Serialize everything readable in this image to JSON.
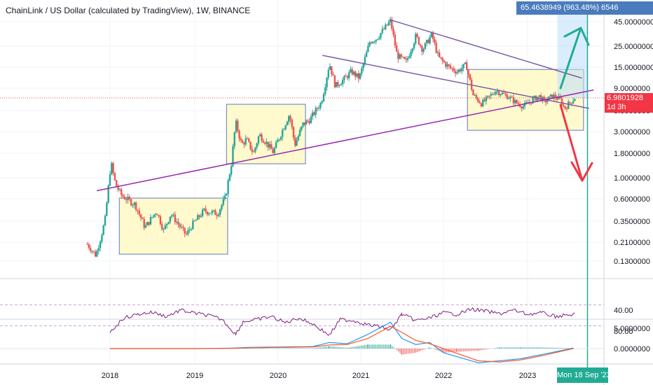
{
  "header": {
    "title": "ChainLink / US Dollar (calculated by TradingView), 1W, BINANCE"
  },
  "price_axis": {
    "currency": "USD",
    "current_price": "6.9801928",
    "countdown": "1d 3h"
  },
  "range_label": "65.4638949 (963.48%) 6546",
  "date_label": "Mon 18 Sep '23",
  "colors": {
    "up": "#26a69a",
    "down": "#ef5350",
    "trendline": "#7b5ea7",
    "support": "#9c27b0",
    "box_fill": "#fff9c4",
    "box_stroke": "#5c7cc4",
    "rsi": "#7e1f7e",
    "macd": "#2196f3",
    "signal": "#ff5722",
    "green_arrow": "#22ab94",
    "red_arrow": "#f23645",
    "price_tag": "#f23645",
    "range_tag": "#4a7bbd"
  },
  "chart_data": [
    {
      "type": "candlestick",
      "scale": "log",
      "ylim": [
        0.1,
        55
      ],
      "yticks": [
        "45.0000000",
        "25.0000000",
        "15.0000000",
        "9.0000000",
        "5.0000000",
        "3.0000000",
        "1.8000000",
        "1.0000000",
        "0.6000000",
        "0.3500000",
        "0.2100000",
        "0.1300000"
      ],
      "xticks": [
        "2018",
        "2019",
        "2020",
        "2021",
        "2022",
        "2023"
      ],
      "price_path": [
        [
          "2017-09-25",
          0.2
        ],
        [
          "2017-11-01",
          0.15
        ],
        [
          "2017-12-10",
          0.35
        ],
        [
          "2018-01-05",
          1.45
        ],
        [
          "2018-01-25",
          0.85
        ],
        [
          "2018-02-20",
          0.65
        ],
        [
          "2018-04-20",
          0.52
        ],
        [
          "2018-06-01",
          0.3
        ],
        [
          "2018-07-20",
          0.45
        ],
        [
          "2018-08-20",
          0.28
        ],
        [
          "2018-09-20",
          0.42
        ],
        [
          "2018-11-25",
          0.25
        ],
        [
          "2018-12-20",
          0.32
        ],
        [
          "2019-02-10",
          0.45
        ],
        [
          "2019-04-10",
          0.42
        ],
        [
          "2019-05-15",
          0.62
        ],
        [
          "2019-06-10",
          1.4
        ],
        [
          "2019-06-29",
          3.8
        ],
        [
          "2019-07-25",
          2.2
        ],
        [
          "2019-08-15",
          2.5
        ],
        [
          "2019-09-15",
          1.8
        ],
        [
          "2019-10-10",
          2.8
        ],
        [
          "2019-11-05",
          2.4
        ],
        [
          "2019-12-10",
          1.85
        ],
        [
          "2020-02-20",
          4.6
        ],
        [
          "2020-03-15",
          2.2
        ],
        [
          "2020-04-20",
          3.6
        ],
        [
          "2020-05-20",
          4.0
        ],
        [
          "2020-07-10",
          6.2
        ],
        [
          "2020-08-15",
          16.5
        ],
        [
          "2020-09-10",
          9.5
        ],
        [
          "2020-10-15",
          11.0
        ],
        [
          "2020-11-20",
          13.5
        ],
        [
          "2020-12-25",
          11.5
        ],
        [
          "2021-02-10",
          28.0
        ],
        [
          "2021-03-10",
          30.0
        ],
        [
          "2021-04-15",
          38.0
        ],
        [
          "2021-05-12",
          46.0
        ],
        [
          "2021-06-10",
          20.0
        ],
        [
          "2021-07-20",
          17.0
        ],
        [
          "2021-09-01",
          32.0
        ],
        [
          "2021-10-01",
          23.0
        ],
        [
          "2021-11-10",
          33.0
        ],
        [
          "2021-12-10",
          19.0
        ],
        [
          "2022-01-25",
          15.0
        ],
        [
          "2022-03-01",
          13.5
        ],
        [
          "2022-04-10",
          16.0
        ],
        [
          "2022-05-10",
          7.5
        ],
        [
          "2022-06-15",
          6.0
        ],
        [
          "2022-07-20",
          7.2
        ],
        [
          "2022-08-15",
          8.5
        ],
        [
          "2022-10-10",
          7.2
        ],
        [
          "2022-11-10",
          6.2
        ],
        [
          "2022-12-15",
          5.6
        ],
        [
          "2023-01-20",
          6.6
        ],
        [
          "2023-02-20",
          7.3
        ],
        [
          "2023-03-15",
          6.3
        ],
        [
          "2023-04-20",
          7.4
        ],
        [
          "2023-05-25",
          6.6
        ],
        [
          "2023-06-10",
          5.3
        ],
        [
          "2023-07-05",
          6.2
        ],
        [
          "2023-07-25",
          6.98
        ]
      ],
      "current_price": 6.9801928
    },
    {
      "type": "line",
      "name": "RSI",
      "yticks": [
        "80.00",
        "40.00"
      ],
      "band": [
        30,
        70
      ],
      "x": [
        "2018-01-01",
        "2018-03-01",
        "2018-05-01",
        "2018-07-01",
        "2018-09-01",
        "2018-11-01",
        "2019-01-01",
        "2019-03-01",
        "2019-05-01",
        "2019-06-29",
        "2019-08-01",
        "2019-10-01",
        "2019-12-01",
        "2020-02-01",
        "2020-04-01",
        "2020-06-01",
        "2020-08-15",
        "2020-10-01",
        "2020-12-01",
        "2021-02-01",
        "2021-04-01",
        "2021-05-12",
        "2021-07-01",
        "2021-09-01",
        "2021-11-01",
        "2022-01-01",
        "2022-03-01",
        "2022-05-01",
        "2022-07-01",
        "2022-09-01",
        "2022-11-01",
        "2023-01-01",
        "2023-03-01",
        "2023-05-01",
        "2023-07-25"
      ],
      "values": [
        82,
        55,
        48,
        44,
        52,
        40,
        46,
        50,
        58,
        86,
        62,
        58,
        52,
        64,
        55,
        66,
        88,
        58,
        60,
        68,
        72,
        78,
        48,
        60,
        55,
        45,
        48,
        38,
        42,
        47,
        40,
        48,
        45,
        52,
        48
      ]
    },
    {
      "type": "line",
      "name": "MACD",
      "yticks": [
        "5.0000000",
        "0.0000000"
      ],
      "x": [
        "2018-01-01",
        "2019-01-01",
        "2019-06-01",
        "2019-09-01",
        "2020-01-01",
        "2020-06-01",
        "2020-08-15",
        "2020-11-01",
        "2021-02-01",
        "2021-05-12",
        "2021-07-01",
        "2021-09-01",
        "2021-11-01",
        "2022-01-01",
        "2022-03-01",
        "2022-06-01",
        "2022-09-01",
        "2022-12-01",
        "2023-03-01",
        "2023-07-25"
      ],
      "series": [
        {
          "values": [
            0,
            0,
            0.1,
            0.3,
            0.4,
            0.5,
            1.5,
            1.2,
            3.5,
            6.5,
            2.5,
            1.0,
            1.5,
            -1.0,
            -2.0,
            -3.5,
            -3.0,
            -2.5,
            -1.5,
            0.2
          ]
        },
        {
          "values": [
            0,
            0,
            0.05,
            0.2,
            0.3,
            0.4,
            0.9,
            1.0,
            2.5,
            5.5,
            4.0,
            2.0,
            1.2,
            0.0,
            -1.2,
            -3.0,
            -3.3,
            -2.8,
            -1.8,
            0.1
          ]
        }
      ]
    }
  ]
}
